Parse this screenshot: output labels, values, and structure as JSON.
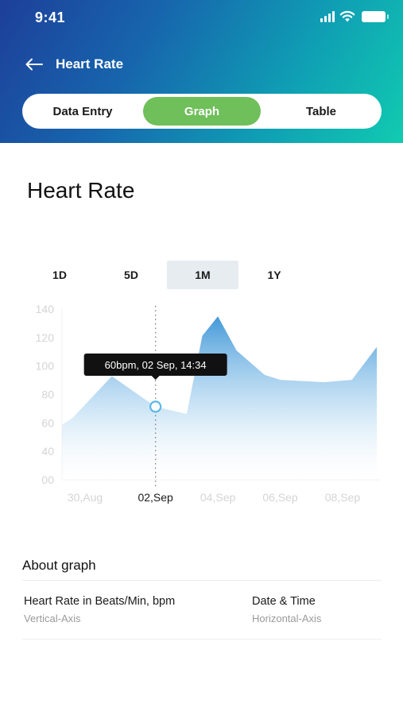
{
  "status": {
    "time": "9:41"
  },
  "nav": {
    "title": "Heart Rate"
  },
  "segments": [
    {
      "label": "Data Entry",
      "active": false
    },
    {
      "label": "Graph",
      "active": true
    },
    {
      "label": "Table",
      "active": false
    }
  ],
  "page_title": "Heart Rate",
  "ranges": [
    {
      "label": "1D",
      "active": false
    },
    {
      "label": "5D",
      "active": false
    },
    {
      "label": "1M",
      "active": true
    },
    {
      "label": "1Y",
      "active": false
    }
  ],
  "colors": {
    "header_start": "#1d3f9a",
    "header_end": "#11cbb0",
    "active_segment": "#6fbf5a",
    "area_top": "#3a93d6",
    "marker": "#5ab7e6"
  },
  "chart_data": {
    "type": "area",
    "y_ticks": [
      "140",
      "120",
      "100",
      "80",
      "60",
      "40",
      "00"
    ],
    "x_tick_labels": [
      {
        "label": "30,Aug",
        "x": 0
      },
      {
        "label": "02,Sep",
        "x": 3
      },
      {
        "label": "04,Sep",
        "x": 5
      },
      {
        "label": "06,Sep",
        "x": 7
      },
      {
        "label": "08,Sep",
        "x": 9
      }
    ],
    "series": [
      {
        "points": [
          {
            "x": 0.0,
            "y": 45
          },
          {
            "x": 0.35,
            "y": 51
          },
          {
            "x": 1.6,
            "y": 85
          },
          {
            "x": 3.0,
            "y": 60
          },
          {
            "x": 4.0,
            "y": 54
          },
          {
            "x": 4.5,
            "y": 118
          },
          {
            "x": 5.0,
            "y": 134
          },
          {
            "x": 5.6,
            "y": 106
          },
          {
            "x": 6.5,
            "y": 86
          },
          {
            "x": 7.0,
            "y": 82
          },
          {
            "x": 8.4,
            "y": 80
          },
          {
            "x": 9.3,
            "y": 82
          },
          {
            "x": 10.1,
            "y": 109
          }
        ]
      }
    ],
    "selected_point": {
      "x": 3.0,
      "y": 60
    },
    "tooltip": "60bpm, 02 Sep, 14:34",
    "highlighted_tick": "02,Sep",
    "ylim": [
      0,
      140
    ],
    "xlim": [
      0,
      10.2
    ]
  },
  "about": {
    "title": "About graph",
    "items": [
      {
        "label": "Heart Rate in Beats/Min, bpm",
        "sub": "Vertical-Axis"
      },
      {
        "label": "Date & Time",
        "sub": "Horizontal-Axis"
      }
    ]
  }
}
